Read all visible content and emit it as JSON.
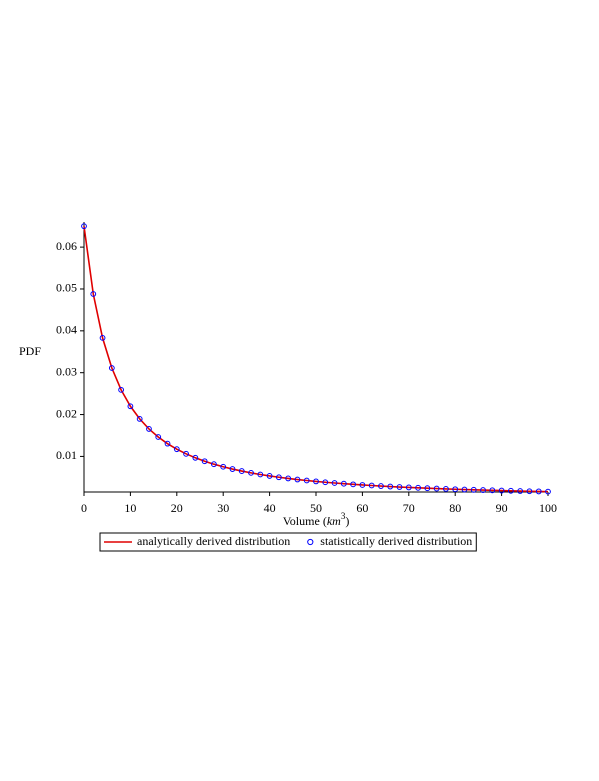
{
  "chart_data": {
    "type": "line",
    "y_label": "PDF",
    "x_label": "Volume",
    "x_label_unit": "km",
    "x_label_exponent": "3",
    "x": [
      0,
      2,
      4,
      6,
      8,
      10,
      12,
      14,
      16,
      18,
      20,
      22,
      24,
      26,
      28,
      30,
      32,
      34,
      36,
      38,
      40,
      42,
      44,
      46,
      48,
      50,
      52,
      54,
      56,
      58,
      60,
      62,
      64,
      66,
      68,
      70,
      72,
      74,
      76,
      78,
      80,
      82,
      84,
      86,
      88,
      90,
      92,
      94,
      96,
      98,
      100
    ],
    "series": [
      {
        "name": "analytically derived distribution",
        "color": "#e00000",
        "mode": "line",
        "values": [
          0.065,
          0.0488,
          0.03832,
          0.03112,
          0.0259,
          0.02198,
          0.01896,
          0.01657,
          0.01464,
          0.01305,
          0.01173,
          0.01062,
          0.00967,
          0.00885,
          0.00814,
          0.00753,
          0.00698,
          0.0065,
          0.00607,
          0.00568,
          0.00534,
          0.00502,
          0.00474,
          0.00448,
          0.00425,
          0.00403,
          0.00383,
          0.00365,
          0.00348,
          0.00333,
          0.00318,
          0.00305,
          0.00292,
          0.0028,
          0.00269,
          0.00259,
          0.0025,
          0.00241,
          0.00232,
          0.00224,
          0.00216,
          0.00209,
          0.00202,
          0.00196,
          0.0019,
          0.00184,
          0.00178,
          0.00173,
          0.00168,
          0.00164,
          0.00159
        ]
      },
      {
        "name": "statistically derived distribution",
        "color": "#0000ff",
        "mode": "markers",
        "values": [
          0.065,
          0.0488,
          0.03832,
          0.03112,
          0.0259,
          0.02198,
          0.01896,
          0.01657,
          0.01464,
          0.01305,
          0.01173,
          0.01062,
          0.00967,
          0.00885,
          0.00814,
          0.00753,
          0.00698,
          0.0065,
          0.00607,
          0.00568,
          0.00534,
          0.00502,
          0.00474,
          0.00448,
          0.00425,
          0.00403,
          0.00383,
          0.00365,
          0.00348,
          0.00333,
          0.00318,
          0.00305,
          0.00292,
          0.0028,
          0.00269,
          0.00259,
          0.0025,
          0.00241,
          0.00232,
          0.00224,
          0.00216,
          0.00209,
          0.00202,
          0.00196,
          0.0019,
          0.00184,
          0.00178,
          0.00173,
          0.00168,
          0.00164,
          0.00159
        ]
      }
    ],
    "xlim": [
      0,
      100
    ],
    "xticks": [
      0,
      10,
      20,
      30,
      40,
      50,
      60,
      70,
      80,
      90,
      100
    ],
    "ylim": [
      0.0015,
      0.066
    ],
    "yticks": [
      0.01,
      0.02,
      0.03,
      0.04,
      0.05,
      0.06
    ],
    "grid": false,
    "legend": "bottom"
  }
}
